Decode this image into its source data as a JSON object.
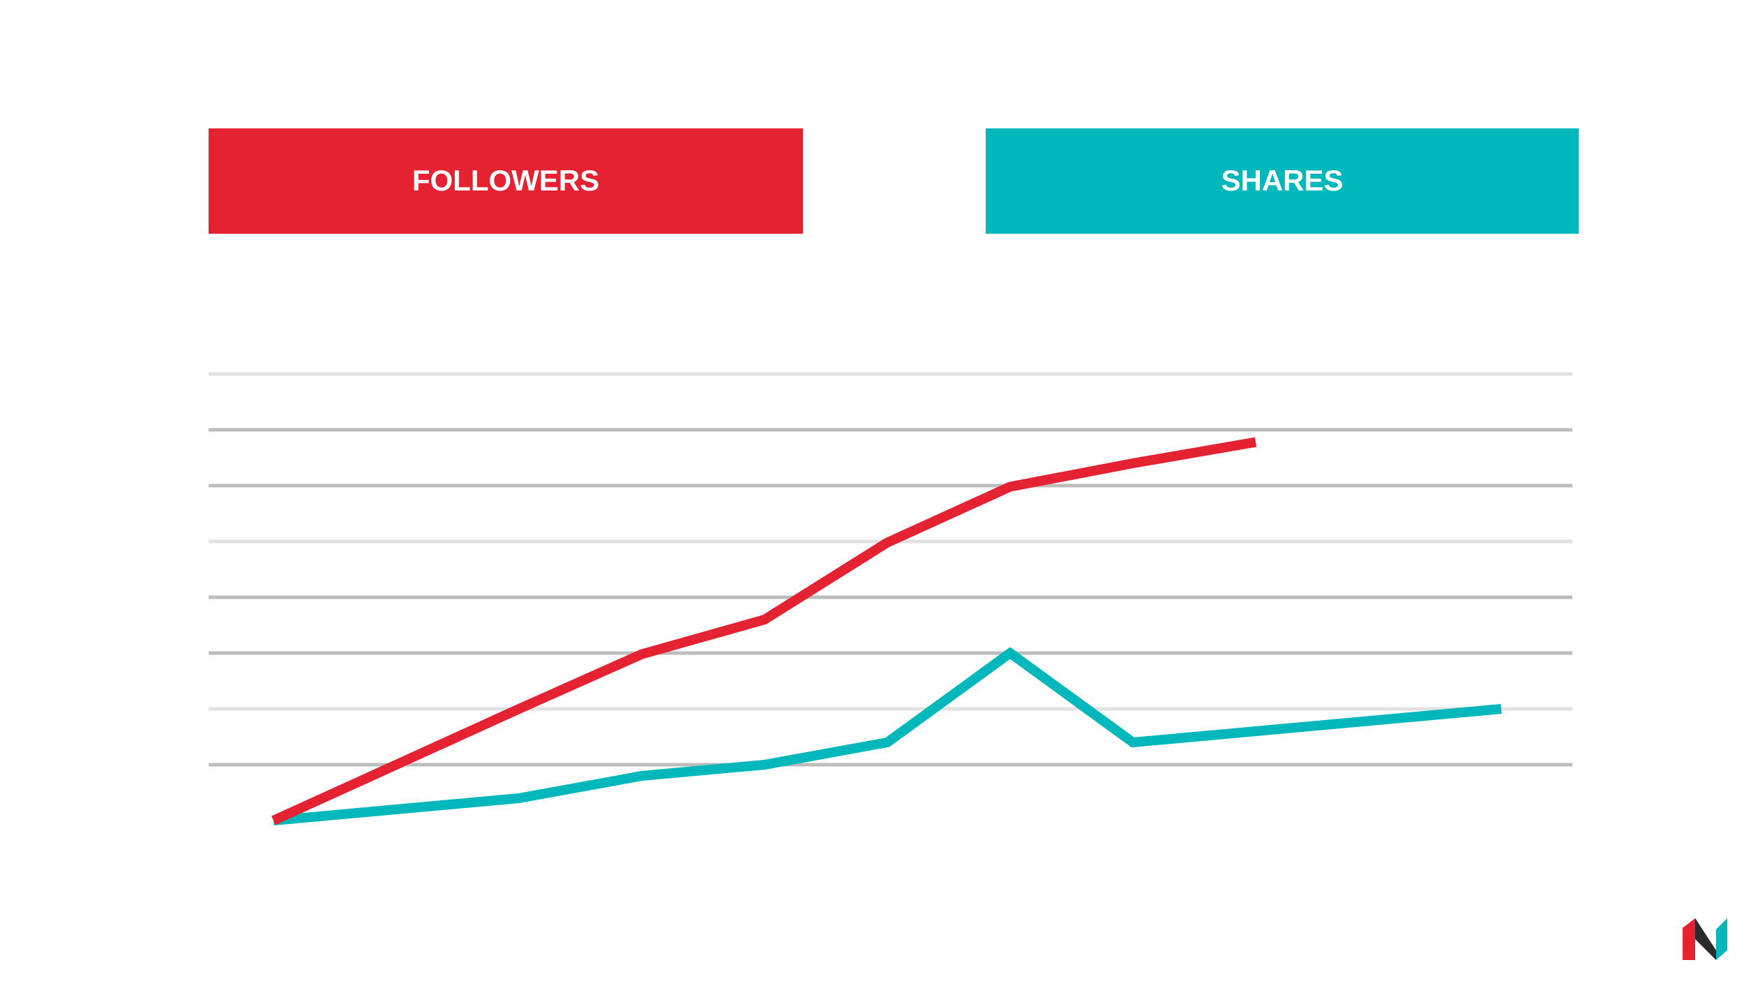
{
  "chart_data": {
    "type": "line",
    "categories": [
      null,
      null,
      null,
      null,
      null,
      null,
      null,
      null,
      null,
      null,
      null
    ],
    "series": [
      {
        "name": "FOLLOWERS",
        "color": "#e52232",
        "values": [
          0,
          1.0,
          2.0,
          2.98,
          3.6,
          4.98,
          5.98,
          6.4,
          6.78,
          null,
          null
        ]
      },
      {
        "name": "SHARES",
        "color": "#00b8bb",
        "values": [
          0,
          0.2,
          0.4,
          0.8,
          1.0,
          1.4,
          3.0,
          1.4,
          1.6,
          1.8,
          2.0
        ]
      }
    ],
    "ylim": [
      0,
      8
    ],
    "yticks": [
      1,
      2,
      3,
      4,
      5,
      6,
      7,
      8
    ],
    "grid": true
  }
}
